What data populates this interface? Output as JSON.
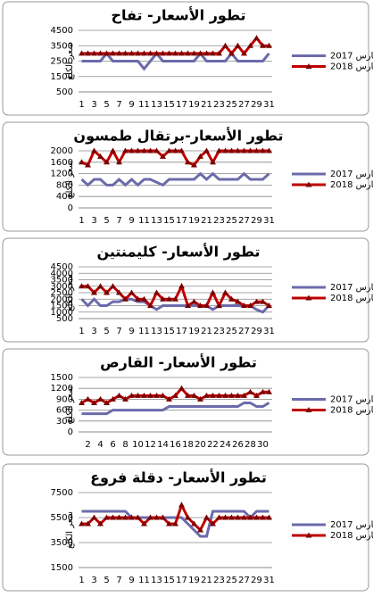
{
  "chart_data": [
    {
      "type": "line",
      "title": "تطور الأسعار- تفاح",
      "y_label": "سعر الكلغ",
      "categories": [
        1,
        null,
        3,
        null,
        5,
        null,
        7,
        null,
        9,
        null,
        11,
        null,
        13,
        null,
        15,
        null,
        17,
        null,
        19,
        null,
        21,
        null,
        23,
        null,
        25,
        null,
        27,
        null,
        29,
        null,
        31
      ],
      "series": [
        {
          "name": "مارس 2017",
          "color": "#6b6bab",
          "values": [
            2500,
            2500,
            2500,
            2500,
            3000,
            2500,
            2500,
            2500,
            2500,
            2500,
            2000,
            2500,
            3000,
            2500,
            2500,
            2500,
            2500,
            2500,
            2500,
            3000,
            2500,
            2500,
            2500,
            2500,
            3000,
            2500,
            2500,
            2500,
            2500,
            2500,
            3000
          ]
        },
        {
          "name": "مارس 2018",
          "color": "#c00000",
          "values": [
            3000,
            3000,
            3000,
            3000,
            3000,
            3000,
            3000,
            3000,
            3000,
            3000,
            3000,
            3000,
            3000,
            3000,
            3000,
            3000,
            3000,
            3000,
            3000,
            3000,
            3000,
            3000,
            3000,
            3500,
            3000,
            3500,
            3000,
            3500,
            4000,
            3500,
            3500
          ]
        }
      ],
      "ylim": [
        500,
        4500
      ],
      "yticks": [
        500,
        1500,
        2500,
        3500,
        4500
      ]
    },
    {
      "type": "line",
      "title": "تطور الأسعار-برتقال طمسون",
      "y_label": "سعر الكلغ",
      "categories": [
        1,
        null,
        3,
        null,
        5,
        null,
        7,
        null,
        9,
        null,
        11,
        null,
        13,
        null,
        15,
        null,
        17,
        null,
        19,
        null,
        21,
        null,
        23,
        null,
        25,
        null,
        27,
        null,
        29,
        null,
        31
      ],
      "series": [
        {
          "name": "مارس 2017",
          "color": "#6b6bab",
          "values": [
            1000,
            800,
            1000,
            1000,
            800,
            800,
            1000,
            800,
            1000,
            800,
            1000,
            1000,
            900,
            800,
            1000,
            1000,
            1000,
            1000,
            1000,
            1200,
            1000,
            1200,
            1000,
            1000,
            1000,
            1000,
            1200,
            1000,
            1000,
            1000,
            1200
          ]
        },
        {
          "name": "مارس 2018",
          "color": "#c00000",
          "values": [
            1600,
            1500,
            2000,
            1800,
            1600,
            2000,
            1600,
            2000,
            2000,
            2000,
            2000,
            2000,
            2000,
            1800,
            2000,
            2000,
            2000,
            1600,
            1500,
            1800,
            2000,
            1600,
            2000,
            2000,
            2000,
            2000,
            2000,
            2000,
            2000,
            2000,
            2000
          ]
        }
      ],
      "ylim": [
        0,
        2000
      ],
      "yticks": [
        0,
        400,
        800,
        1200,
        1600,
        2000
      ]
    },
    {
      "type": "line",
      "title": "تطور الأسعار- كليمنتين",
      "y_label": "سعر الكلغ",
      "categories": [
        1,
        null,
        3,
        null,
        5,
        null,
        7,
        null,
        9,
        null,
        11,
        null,
        13,
        null,
        15,
        null,
        17,
        null,
        19,
        null,
        21,
        null,
        23,
        null,
        25,
        null,
        27,
        null,
        29,
        null,
        31
      ],
      "series": [
        {
          "name": "مارس 2017",
          "color": "#6b6bab",
          "values": [
            2000,
            1500,
            2000,
            1500,
            1500,
            1800,
            1800,
            2000,
            2000,
            1800,
            1800,
            1500,
            1200,
            1500,
            1500,
            1500,
            1500,
            1500,
            1500,
            1500,
            1500,
            1200,
            1500,
            1500,
            1500,
            1500,
            1500,
            1500,
            1200,
            1000,
            1500
          ]
        },
        {
          "name": "مارس 2018",
          "color": "#c00000",
          "values": [
            3000,
            3000,
            2500,
            3000,
            2500,
            3000,
            2500,
            2000,
            2500,
            2000,
            2000,
            1500,
            2500,
            2000,
            2000,
            2000,
            3000,
            1500,
            1800,
            1500,
            1500,
            2500,
            1500,
            2500,
            2000,
            1800,
            1500,
            1500,
            1800,
            1800,
            1500
          ]
        }
      ],
      "ylim": [
        500,
        4500
      ],
      "yticks": [
        500,
        1000,
        1500,
        2000,
        2500,
        3000,
        3500,
        4000,
        4500
      ]
    },
    {
      "type": "line",
      "title": "تطور الأسعار- القارص",
      "y_label": "سعر الكلغ",
      "categories": [
        null,
        2,
        null,
        4,
        null,
        6,
        null,
        8,
        null,
        10,
        null,
        12,
        null,
        14,
        null,
        16,
        null,
        18,
        null,
        20,
        null,
        22,
        null,
        24,
        null,
        26,
        null,
        28,
        null,
        30,
        null
      ],
      "series": [
        {
          "name": "مارس 2017",
          "color": "#6b6bab",
          "values": [
            500,
            500,
            500,
            500,
            500,
            600,
            600,
            600,
            600,
            600,
            600,
            600,
            600,
            600,
            700,
            700,
            700,
            700,
            700,
            700,
            700,
            700,
            700,
            700,
            700,
            700,
            800,
            800,
            700,
            700,
            800
          ]
        },
        {
          "name": "مارس 2018",
          "color": "#c00000",
          "values": [
            800,
            900,
            800,
            900,
            800,
            900,
            1000,
            900,
            1000,
            1000,
            1000,
            1000,
            1000,
            1000,
            900,
            1000,
            1200,
            1000,
            1000,
            900,
            1000,
            1000,
            1000,
            1000,
            1000,
            1000,
            1000,
            1100,
            1000,
            1100,
            1100
          ]
        }
      ],
      "ylim": [
        0,
        1500
      ],
      "yticks": [
        0,
        300,
        600,
        900,
        1200,
        1500
      ]
    },
    {
      "type": "line",
      "title": "تطور الأسعار- دقلة فروع",
      "y_label": "سعر الكلغ",
      "categories": [
        1,
        null,
        3,
        null,
        5,
        null,
        7,
        null,
        9,
        null,
        11,
        null,
        13,
        null,
        15,
        null,
        17,
        null,
        19,
        null,
        21,
        null,
        23,
        null,
        25,
        null,
        27,
        null,
        29,
        null,
        31
      ],
      "series": [
        {
          "name": "مارس 2017",
          "color": "#6b6bab",
          "values": [
            6000,
            6000,
            6000,
            6000,
            6000,
            6000,
            6000,
            6000,
            5500,
            5500,
            5500,
            5500,
            5500,
            5500,
            5500,
            5500,
            5500,
            5000,
            4500,
            4000,
            4000,
            6000,
            6000,
            6000,
            6000,
            6000,
            6000,
            5500,
            6000,
            6000,
            6000
          ]
        },
        {
          "name": "مارس 2018",
          "color": "#c00000",
          "values": [
            5000,
            5000,
            5500,
            5000,
            5500,
            5500,
            5500,
            5500,
            5500,
            5500,
            5000,
            5500,
            5500,
            5500,
            5000,
            5000,
            6500,
            5500,
            5000,
            4500,
            5500,
            5000,
            5500,
            5500,
            5500,
            5500,
            5500,
            5500,
            5500,
            5500,
            5500
          ]
        }
      ],
      "ylim": [
        1500,
        7500
      ],
      "yticks": [
        1500,
        3500,
        5500,
        7500
      ]
    }
  ]
}
